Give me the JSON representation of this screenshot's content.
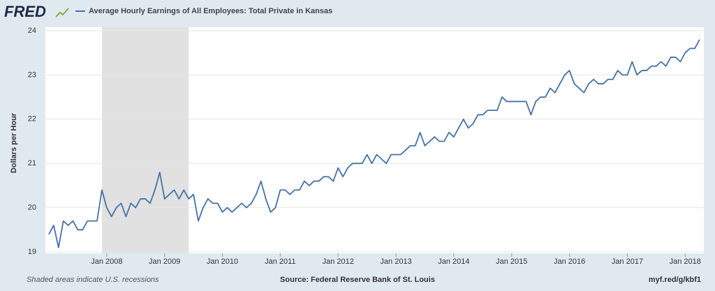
{
  "header": {
    "logo": "FRED"
  },
  "chart_data": {
    "type": "line",
    "series": [
      {
        "name": "Average Hourly Earnings of All Employees: Total Private in Kansas",
        "color": "#4572a7",
        "values": [
          19.4,
          19.6,
          19.1,
          19.7,
          19.6,
          19.7,
          19.5,
          19.5,
          19.7,
          19.7,
          19.7,
          20.4,
          20.0,
          19.8,
          20.0,
          20.1,
          19.8,
          20.1,
          20.0,
          20.2,
          20.2,
          20.1,
          20.4,
          20.8,
          20.2,
          20.3,
          20.4,
          20.2,
          20.4,
          20.2,
          20.3,
          19.7,
          20.0,
          20.2,
          20.1,
          20.1,
          19.9,
          20.0,
          19.9,
          20.0,
          20.1,
          20.0,
          20.1,
          20.3,
          20.6,
          20.2,
          19.9,
          20.0,
          20.4,
          20.4,
          20.3,
          20.4,
          20.4,
          20.6,
          20.5,
          20.6,
          20.6,
          20.7,
          20.7,
          20.6,
          20.9,
          20.7,
          20.9,
          21.0,
          21.0,
          21.0,
          21.2,
          21.0,
          21.2,
          21.1,
          21.0,
          21.2,
          21.2,
          21.2,
          21.3,
          21.4,
          21.4,
          21.7,
          21.4,
          21.5,
          21.6,
          21.5,
          21.5,
          21.7,
          21.6,
          21.8,
          22.0,
          21.8,
          21.9,
          22.1,
          22.1,
          22.2,
          22.2,
          22.2,
          22.5,
          22.4,
          22.4,
          22.4,
          22.4,
          22.4,
          22.1,
          22.4,
          22.5,
          22.5,
          22.7,
          22.6,
          22.8,
          23.0,
          23.1,
          22.8,
          22.7,
          22.6,
          22.8,
          22.9,
          22.8,
          22.8,
          22.9,
          22.9,
          23.1,
          23.0,
          23.0,
          23.3,
          23.0,
          23.1,
          23.1,
          23.2,
          23.2,
          23.3,
          23.2,
          23.4,
          23.4,
          23.3,
          23.5,
          23.6,
          23.6,
          23.8
        ]
      }
    ],
    "x": [
      "2007-01",
      "2007-02",
      "2007-03",
      "2007-04",
      "2007-05",
      "2007-06",
      "2007-07",
      "2007-08",
      "2007-09",
      "2007-10",
      "2007-11",
      "2007-12",
      "2008-01",
      "2008-02",
      "2008-03",
      "2008-04",
      "2008-05",
      "2008-06",
      "2008-07",
      "2008-08",
      "2008-09",
      "2008-10",
      "2008-11",
      "2008-12",
      "2009-01",
      "2009-02",
      "2009-03",
      "2009-04",
      "2009-05",
      "2009-06",
      "2009-07",
      "2009-08",
      "2009-09",
      "2009-10",
      "2009-11",
      "2009-12",
      "2010-01",
      "2010-02",
      "2010-03",
      "2010-04",
      "2010-05",
      "2010-06",
      "2010-07",
      "2010-08",
      "2010-09",
      "2010-10",
      "2010-11",
      "2010-12",
      "2011-01",
      "2011-02",
      "2011-03",
      "2011-04",
      "2011-05",
      "2011-06",
      "2011-07",
      "2011-08",
      "2011-09",
      "2011-10",
      "2011-11",
      "2011-12",
      "2012-01",
      "2012-02",
      "2012-03",
      "2012-04",
      "2012-05",
      "2012-06",
      "2012-07",
      "2012-08",
      "2012-09",
      "2012-10",
      "2012-11",
      "2012-12",
      "2013-01",
      "2013-02",
      "2013-03",
      "2013-04",
      "2013-05",
      "2013-06",
      "2013-07",
      "2013-08",
      "2013-09",
      "2013-10",
      "2013-11",
      "2013-12",
      "2014-01",
      "2014-02",
      "2014-03",
      "2014-04",
      "2014-05",
      "2014-06",
      "2014-07",
      "2014-08",
      "2014-09",
      "2014-10",
      "2014-11",
      "2014-12",
      "2015-01",
      "2015-02",
      "2015-03",
      "2015-04",
      "2015-05",
      "2015-06",
      "2015-07",
      "2015-08",
      "2015-09",
      "2015-10",
      "2015-11",
      "2015-12",
      "2016-01",
      "2016-02",
      "2016-03",
      "2016-04",
      "2016-05",
      "2016-06",
      "2016-07",
      "2016-08",
      "2016-09",
      "2016-10",
      "2016-11",
      "2016-12",
      "2017-01",
      "2017-02",
      "2017-03",
      "2017-04",
      "2017-05",
      "2017-06",
      "2017-07",
      "2017-08",
      "2017-09",
      "2017-10",
      "2017-11",
      "2017-12",
      "2018-01",
      "2018-02",
      "2018-03",
      "2018-04"
    ],
    "xlim": [
      "2007-01",
      "2018-04"
    ],
    "xticks": [
      {
        "value": "2008-01",
        "label": "Jan 2008"
      },
      {
        "value": "2009-01",
        "label": "Jan 2009"
      },
      {
        "value": "2010-01",
        "label": "Jan 2010"
      },
      {
        "value": "2011-01",
        "label": "Jan 2011"
      },
      {
        "value": "2012-01",
        "label": "Jan 2012"
      },
      {
        "value": "2013-01",
        "label": "Jan 2013"
      },
      {
        "value": "2014-01",
        "label": "Jan 2014"
      },
      {
        "value": "2015-01",
        "label": "Jan 2015"
      },
      {
        "value": "2016-01",
        "label": "Jan 2016"
      },
      {
        "value": "2017-01",
        "label": "Jan 2017"
      },
      {
        "value": "2018-01",
        "label": "Jan 2018"
      }
    ],
    "ylim": [
      19,
      24
    ],
    "yticks": [
      19,
      20,
      21,
      22,
      23,
      24
    ],
    "ylabel": "Dollars per Hour",
    "grid": true,
    "recessions": [
      {
        "start": "2007-12",
        "end": "2009-06",
        "color": "#e1e1e1"
      }
    ]
  },
  "footer": {
    "note": "Shaded areas indicate U.S. recessions",
    "source": "Source: Federal Reserve Bank of St. Louis",
    "link": "myf.red/g/kbf1"
  }
}
